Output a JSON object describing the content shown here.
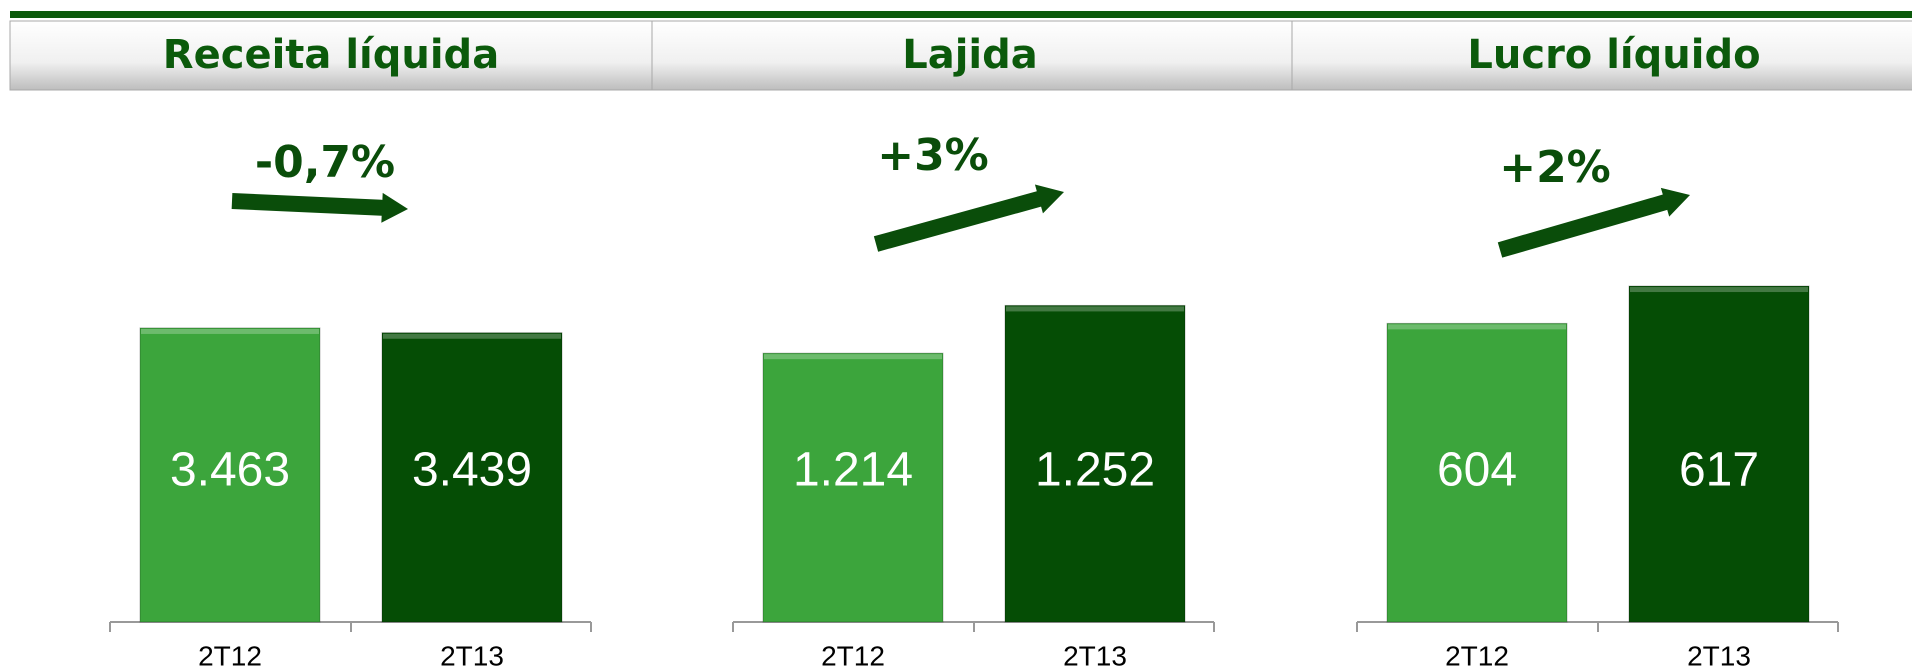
{
  "chart_data": [
    {
      "type": "bar",
      "title": "Receita líquida",
      "categories": [
        "2T12",
        "2T13"
      ],
      "values": [
        3463,
        3439
      ],
      "value_labels": [
        "3.463",
        "3.439"
      ],
      "colors": [
        "#3ca53c",
        "#054d05"
      ],
      "annotation": "-0,7%",
      "ylim": [
        2000,
        4000
      ]
    },
    {
      "type": "bar",
      "title": "Lajida",
      "categories": [
        "2T12",
        "2T13"
      ],
      "values": [
        1214,
        1252
      ],
      "value_labels": [
        "1.214",
        "1.252"
      ],
      "colors": [
        "#3ca53c",
        "#054d05"
      ],
      "annotation": "+3%",
      "ylim": [
        1000,
        1320
      ]
    },
    {
      "type": "bar",
      "title": "Lucro líquido",
      "categories": [
        "2T12",
        "2T13"
      ],
      "values": [
        604,
        617
      ],
      "value_labels": [
        "604",
        "617"
      ],
      "colors": [
        "#3ca53c",
        "#054d05"
      ],
      "annotation": "+2%",
      "ylim": [
        500,
        640
      ]
    }
  ]
}
